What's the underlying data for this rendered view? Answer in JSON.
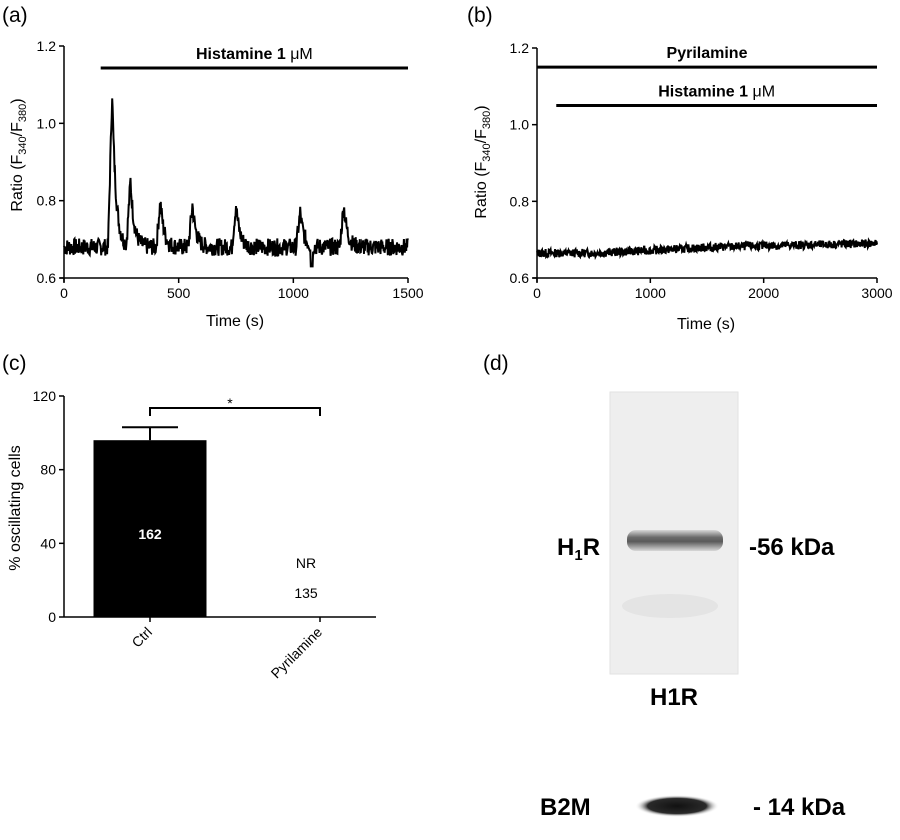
{
  "chart_data": [
    {
      "panel": "(a)",
      "type": "line",
      "xlabel": "Time (s)",
      "ylabel": "Ratio (F340/F380)",
      "ylabel_parts": {
        "main": "Ratio (F",
        "sub1": "340",
        "slash": "/F",
        "sub2": "380",
        "close": ")"
      },
      "xlim": [
        0,
        1500
      ],
      "ylim": [
        0.6,
        1.2
      ],
      "xticks": [
        "0",
        "500",
        "1000",
        "1500"
      ],
      "xtick_values": [
        0,
        500,
        1000,
        1500
      ],
      "yticks": [
        "0.6",
        "0.8",
        "1.0",
        "1.2"
      ],
      "ytick_values": [
        0.6,
        0.8,
        1.0,
        1.2
      ],
      "treatment_bars": [
        {
          "label": "Histamine 1 μM",
          "label_main": "Histamine 1 ",
          "label_unit": "μM",
          "x_start": 160,
          "x_end": 1500
        }
      ],
      "series": [
        {
          "baseline": 0.68,
          "x_range": [
            0,
            1500
          ],
          "peaks": [
            {
              "x": 210,
              "y": 1.08
            },
            {
              "x": 290,
              "y": 0.85
            },
            {
              "x": 420,
              "y": 0.8
            },
            {
              "x": 560,
              "y": 0.79
            },
            {
              "x": 750,
              "y": 0.79
            },
            {
              "x": 1030,
              "y": 0.77
            },
            {
              "x": 1220,
              "y": 0.79
            }
          ]
        }
      ]
    },
    {
      "panel": "(b)",
      "type": "line",
      "xlabel": "Time (s)",
      "ylabel": "Ratio (F340/F380)",
      "ylabel_parts": {
        "main": "Ratio (F",
        "sub1": "340",
        "slash": "/F",
        "sub2": "380",
        "close": ")"
      },
      "xlim": [
        0,
        3000
      ],
      "ylim": [
        0.6,
        1.2
      ],
      "xticks": [
        "0",
        "1000",
        "2000",
        "3000"
      ],
      "xtick_values": [
        0,
        1000,
        2000,
        3000
      ],
      "yticks": [
        "0.6",
        "0.8",
        "1.0",
        "1.2"
      ],
      "ytick_values": [
        0.6,
        0.8,
        1.0,
        1.2
      ],
      "treatment_bars": [
        {
          "label": "Pyrilamine",
          "label_main": "Pyrilamine",
          "label_unit": "",
          "x_start": 0,
          "x_end": 3000,
          "y": 1.15
        },
        {
          "label": "Histamine 1 μM",
          "label_main": "Histamine 1 ",
          "label_unit": "μM",
          "x_start": 170,
          "x_end": 3000,
          "y": 1.05
        }
      ],
      "series": [
        {
          "x": [
            0,
            500,
            1000,
            1500,
            2000,
            2500,
            3000
          ],
          "y": [
            0.665,
            0.665,
            0.672,
            0.68,
            0.684,
            0.687,
            0.69
          ]
        }
      ]
    },
    {
      "panel": "(c)",
      "type": "bar",
      "ylabel": "% oscillating cells",
      "categories": [
        "Ctrl",
        "Pyrilamine"
      ],
      "values": [
        96,
        0
      ],
      "error": [
        7,
        0
      ],
      "ylim": [
        0,
        120
      ],
      "yticks": [
        "0",
        "40",
        "80",
        "120"
      ],
      "ytick_values": [
        0,
        40,
        80,
        120
      ],
      "bar_labels": [
        "162",
        "135"
      ],
      "annotations": {
        "nr": "NR",
        "significance": "*"
      }
    }
  ],
  "panel_d": {
    "label": "(d)",
    "band_left_label_main": "H",
    "band_left_label_sub": "1",
    "band_left_label_end": "R",
    "band_right_label": "-56 kDa",
    "blot_caption": "H1R",
    "loading_control_label": "B2M",
    "loading_control_size": "- 14 kDa"
  }
}
